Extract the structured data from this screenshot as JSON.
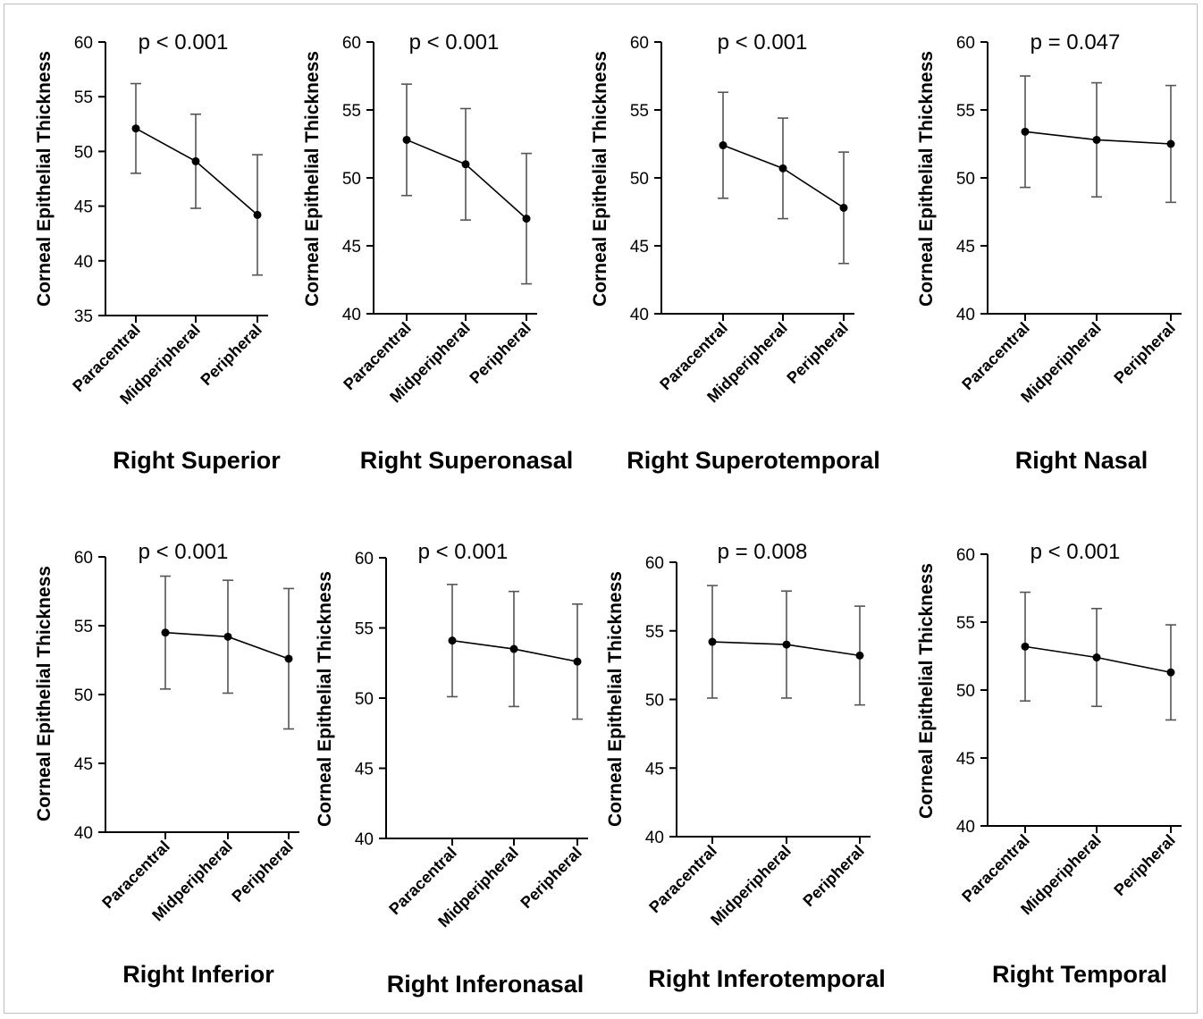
{
  "chart_data": [
    {
      "type": "line",
      "title": "Right Superior",
      "annotation": "p < 0.001",
      "ylabel": "Corneal Epithelial Thickness",
      "categories": [
        "Paracentral",
        "Midperipheral",
        "Peripheral"
      ],
      "ylim": [
        35,
        60
      ],
      "yticks": [
        35,
        40,
        45,
        50,
        55,
        60
      ],
      "values": [
        52.1,
        49.1,
        44.2
      ],
      "errors": [
        4.1,
        4.3,
        5.5
      ],
      "errorbar_color": "#555555",
      "line_color": "#000000"
    },
    {
      "type": "line",
      "title": "Right Superonasal",
      "annotation": "p < 0.001",
      "ylabel": "Corneal Epithelial Thickness",
      "categories": [
        "Paracentral",
        "Midperipheral",
        "Peripheral"
      ],
      "ylim": [
        40,
        60
      ],
      "yticks": [
        40,
        45,
        50,
        55,
        60
      ],
      "values": [
        52.8,
        51.0,
        47.0
      ],
      "errors": [
        4.1,
        4.1,
        4.8
      ],
      "errorbar_color": "#555555",
      "line_color": "#000000"
    },
    {
      "type": "line",
      "title": "Right Superotemporal",
      "annotation": "p < 0.001",
      "ylabel": "Corneal Epithelial Thickness",
      "categories": [
        "Paracentral",
        "Midperipheral",
        "Peripheral"
      ],
      "ylim": [
        40,
        60
      ],
      "yticks": [
        40,
        45,
        50,
        55,
        60
      ],
      "values": [
        52.4,
        50.7,
        47.8
      ],
      "errors": [
        3.9,
        3.7,
        4.1
      ],
      "errorbar_color": "#555555",
      "line_color": "#000000"
    },
    {
      "type": "line",
      "title": "Right Nasal",
      "annotation": "p = 0.047",
      "ylabel": "Corneal Epithelial Thickness",
      "categories": [
        "Paracentral",
        "Midperipheral",
        "Peripheral"
      ],
      "ylim": [
        40,
        60
      ],
      "yticks": [
        40,
        45,
        50,
        55,
        60
      ],
      "values": [
        53.4,
        52.8,
        52.5
      ],
      "errors": [
        4.1,
        4.2,
        4.3
      ],
      "errorbar_color": "#555555",
      "line_color": "#000000"
    },
    {
      "type": "line",
      "title": "Right Inferior",
      "annotation": "p < 0.001",
      "ylabel": "Corneal Epithelial Thickness",
      "categories": [
        "Paracentral",
        "Midperipheral",
        "Peripheral"
      ],
      "ylim": [
        40,
        60
      ],
      "yticks": [
        40,
        45,
        50,
        55,
        60
      ],
      "values": [
        54.5,
        54.2,
        52.6
      ],
      "errors": [
        4.1,
        4.1,
        5.1
      ],
      "errorbar_color": "#555555",
      "line_color": "#000000"
    },
    {
      "type": "line",
      "title": "Right Inferonasal",
      "annotation": "p < 0.001",
      "ylabel": "Corneal Epithelial Thickness",
      "categories": [
        "Paracentral",
        "Midperipheral",
        "Peripheral"
      ],
      "ylim": [
        40,
        60
      ],
      "yticks": [
        40,
        45,
        50,
        55,
        60
      ],
      "values": [
        54.1,
        53.5,
        52.6
      ],
      "errors": [
        4.0,
        4.1,
        4.1
      ],
      "errorbar_color": "#555555",
      "line_color": "#000000"
    },
    {
      "type": "line",
      "title": "Right Inferotemporal",
      "annotation": "p = 0.008",
      "ylabel": "Corneal Epithelial Thickness",
      "categories": [
        "Paracentral",
        "Midperipheral",
        "Peripheral"
      ],
      "ylim": [
        40,
        60
      ],
      "yticks": [
        40,
        45,
        50,
        55,
        60
      ],
      "values": [
        54.2,
        54.0,
        53.2
      ],
      "errors": [
        4.1,
        3.9,
        3.6
      ],
      "errorbar_color": "#555555",
      "line_color": "#000000"
    },
    {
      "type": "line",
      "title": "Right Temporal",
      "annotation": "p < 0.001",
      "ylabel": "Corneal Epithelial Thickness",
      "categories": [
        "Paracentral",
        "Midperipheral",
        "Peripheral"
      ],
      "ylim": [
        40,
        60
      ],
      "yticks": [
        40,
        45,
        50,
        55,
        60
      ],
      "values": [
        53.2,
        52.4,
        51.3
      ],
      "errors": [
        4.0,
        3.6,
        3.5
      ],
      "errorbar_color": "#555555",
      "line_color": "#000000"
    }
  ]
}
